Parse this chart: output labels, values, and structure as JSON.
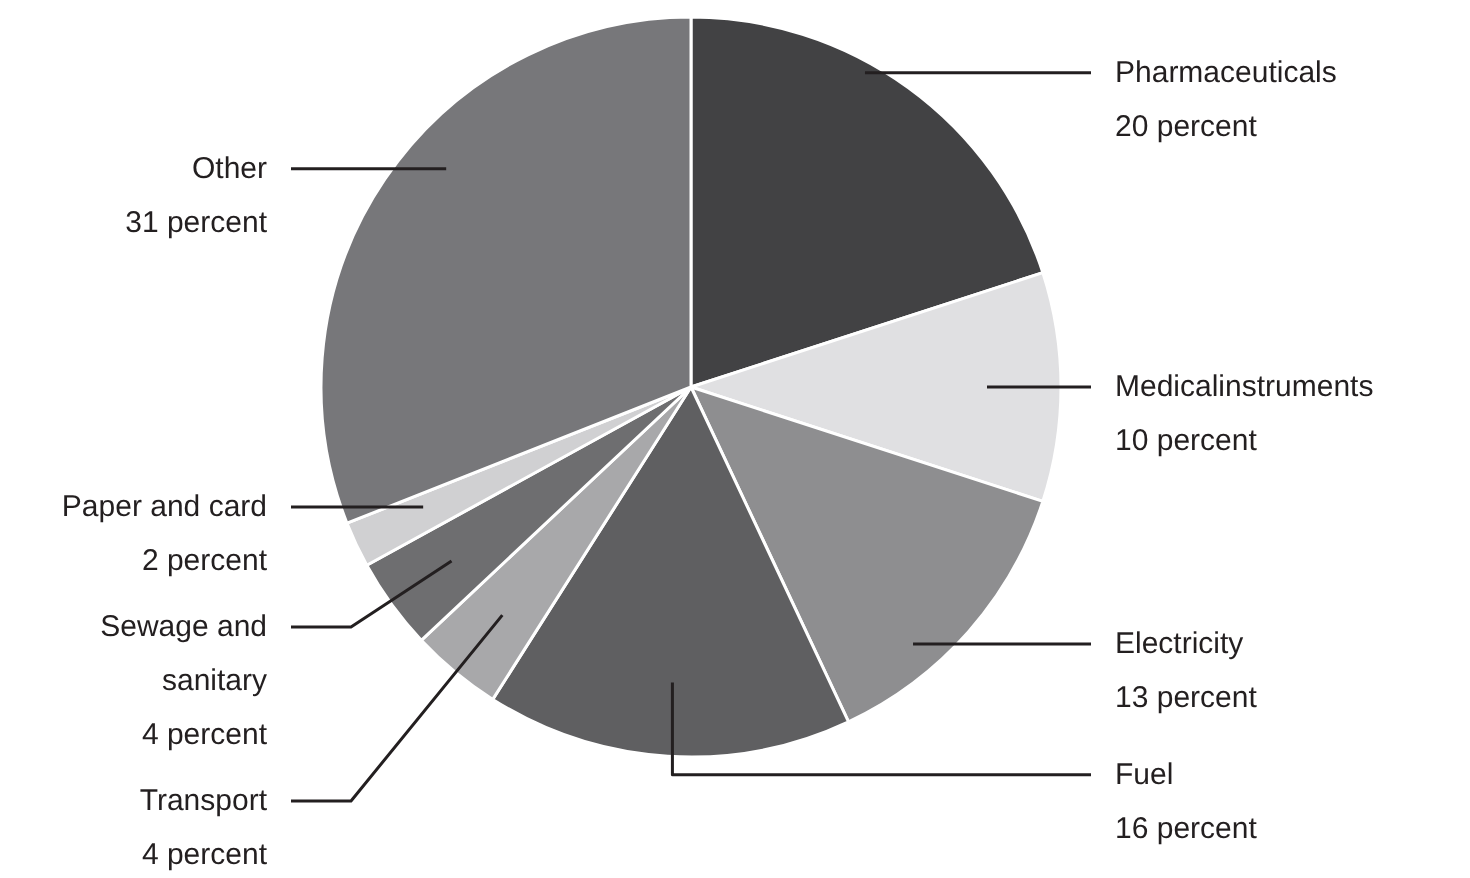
{
  "chart_data": {
    "type": "pie",
    "categories": [
      "Pharmaceuticals",
      "Medicalinstruments",
      "Electricity",
      "Fuel",
      "Transport",
      "Sewage and sanitary",
      "Paper and card",
      "Other"
    ],
    "values": [
      20,
      10,
      13,
      16,
      4,
      4,
      2,
      31
    ],
    "colors": [
      "#424244",
      "#e0e0e2",
      "#8e8e90",
      "#5f5f61",
      "#a8a8aa",
      "#6e6e70",
      "#d0d0d2",
      "#77777a"
    ],
    "value_labels": [
      "20 percent",
      "10 percent",
      "13 percent",
      "16 percent",
      "4 percent",
      "4 percent",
      "2 percent",
      "31 percent"
    ]
  }
}
